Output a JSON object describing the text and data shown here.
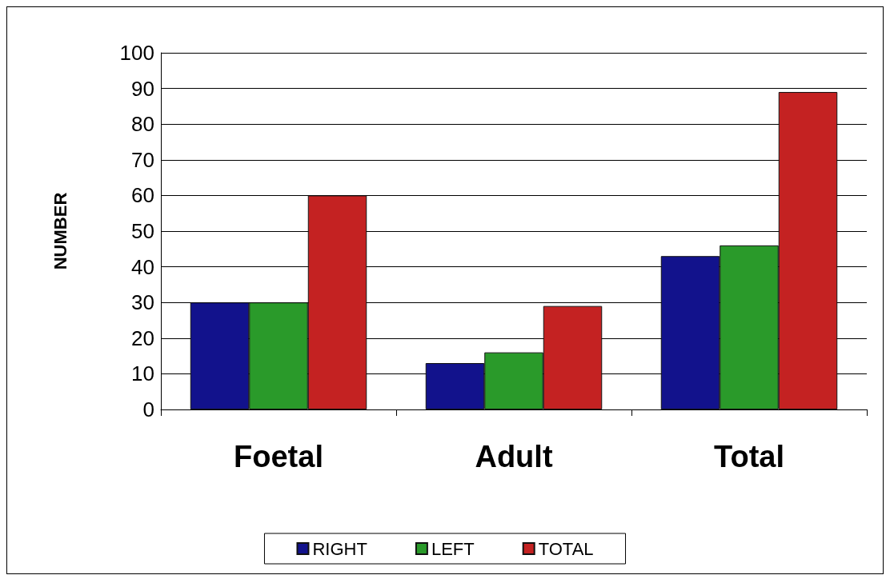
{
  "chart_data": {
    "type": "bar",
    "ylabel": "NUMBER",
    "categories": [
      "Foetal",
      "Adult",
      "Total"
    ],
    "series": [
      {
        "name": "RIGHT",
        "color": "#12128c",
        "values": [
          30,
          13,
          43
        ]
      },
      {
        "name": "LEFT",
        "color": "#2a9a2a",
        "values": [
          30,
          16,
          46
        ]
      },
      {
        "name": "TOTAL",
        "color": "#c42222",
        "values": [
          60,
          29,
          89
        ]
      }
    ],
    "ylim": [
      0,
      100
    ],
    "yticks": [
      0,
      10,
      20,
      30,
      40,
      50,
      60,
      70,
      80,
      90,
      100
    ],
    "grid": "y",
    "legend": "bottom"
  }
}
